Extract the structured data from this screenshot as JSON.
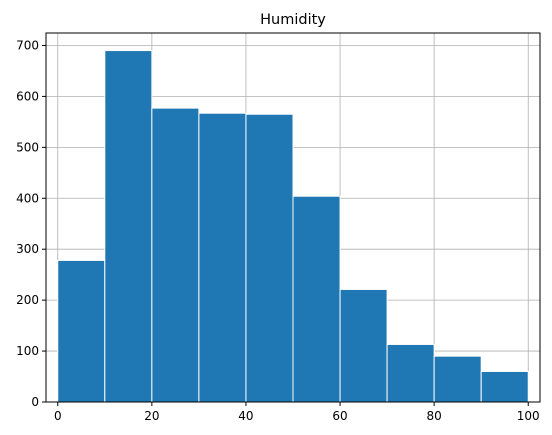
{
  "chart_data": {
    "type": "bar",
    "subtype": "histogram",
    "title": "Humidity",
    "xlabel": "",
    "ylabel": "",
    "bins": [
      {
        "x0": 0,
        "x1": 10,
        "count": 278
      },
      {
        "x0": 10,
        "x1": 20,
        "count": 690
      },
      {
        "x0": 20,
        "x1": 30,
        "count": 577
      },
      {
        "x0": 30,
        "x1": 40,
        "count": 567
      },
      {
        "x0": 40,
        "x1": 50,
        "count": 565
      },
      {
        "x0": 50,
        "x1": 60,
        "count": 404
      },
      {
        "x0": 60,
        "x1": 70,
        "count": 221
      },
      {
        "x0": 70,
        "x1": 80,
        "count": 113
      },
      {
        "x0": 80,
        "x1": 90,
        "count": 90
      },
      {
        "x0": 90,
        "x1": 100,
        "count": 60
      }
    ],
    "xlim": [
      -2.5,
      102.5
    ],
    "ylim": [
      0,
      724.5
    ],
    "xticks": [
      {
        "value": 0,
        "label": "0"
      },
      {
        "value": 20,
        "label": "20"
      },
      {
        "value": 40,
        "label": "40"
      },
      {
        "value": 60,
        "label": "60"
      },
      {
        "value": 80,
        "label": "80"
      },
      {
        "value": 100,
        "label": "100"
      }
    ],
    "yticks": [
      {
        "value": 0,
        "label": "0"
      },
      {
        "value": 100,
        "label": "100"
      },
      {
        "value": 200,
        "label": "200"
      },
      {
        "value": 300,
        "label": "300"
      },
      {
        "value": 400,
        "label": "400"
      },
      {
        "value": 500,
        "label": "500"
      },
      {
        "value": 600,
        "label": "600"
      },
      {
        "value": 700,
        "label": "700"
      }
    ],
    "grid": true,
    "colors": {
      "bar": "#1f77b4",
      "bar_edge": "#ffffff",
      "grid": "#b0b0b0",
      "axis": "#000000"
    }
  }
}
